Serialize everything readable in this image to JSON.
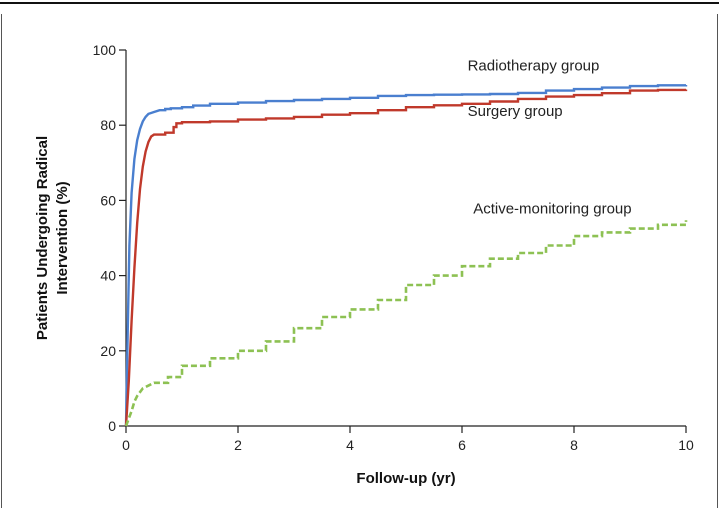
{
  "chart_data": {
    "type": "line",
    "title": "",
    "xlabel": "Follow-up (yr)",
    "ylabel": "Patients Undergoing Radical Intervention (%)",
    "ylabel_lines": [
      "Patients Undergoing Radical",
      "Intervention (%)"
    ],
    "xlim": [
      0,
      10
    ],
    "ylim": [
      0,
      100
    ],
    "x_ticks": [
      0,
      2,
      4,
      6,
      8,
      10
    ],
    "y_ticks": [
      0,
      20,
      40,
      60,
      80,
      100
    ],
    "x_tick_labels": [
      "0",
      "2",
      "4",
      "6",
      "8",
      "10"
    ],
    "y_tick_labels": [
      "0",
      "20",
      "40",
      "60",
      "80",
      "100"
    ],
    "grid": false,
    "step": true,
    "series": [
      {
        "name": "Radiotherapy group",
        "color": "#4a7fcf",
        "dash": "solid",
        "points": [
          [
            0,
            0
          ],
          [
            0.03,
            25
          ],
          [
            0.06,
            48
          ],
          [
            0.1,
            62
          ],
          [
            0.15,
            71
          ],
          [
            0.2,
            76
          ],
          [
            0.25,
            79
          ],
          [
            0.3,
            81
          ],
          [
            0.35,
            82.2
          ],
          [
            0.4,
            83
          ],
          [
            0.5,
            83.5
          ],
          [
            0.6,
            84
          ],
          [
            0.7,
            84.3
          ],
          [
            0.8,
            84.5
          ],
          [
            1.0,
            84.8
          ],
          [
            1.2,
            85.2
          ],
          [
            1.5,
            85.7
          ],
          [
            2.0,
            86
          ],
          [
            2.5,
            86.4
          ],
          [
            3.0,
            86.7
          ],
          [
            3.5,
            87
          ],
          [
            4.0,
            87.3
          ],
          [
            4.5,
            87.8
          ],
          [
            5.0,
            88
          ],
          [
            5.5,
            88.1
          ],
          [
            6.0,
            88.2
          ],
          [
            6.5,
            88.3
          ],
          [
            7.0,
            88.6
          ],
          [
            7.5,
            89.2
          ],
          [
            8.0,
            89.6
          ],
          [
            8.5,
            90
          ],
          [
            9.0,
            90.4
          ],
          [
            9.5,
            90.6
          ],
          [
            10.0,
            90.7
          ]
        ]
      },
      {
        "name": "Surgery group",
        "color": "#c0392b",
        "dash": "solid",
        "points": [
          [
            0,
            0
          ],
          [
            0.05,
            12
          ],
          [
            0.1,
            28
          ],
          [
            0.15,
            42
          ],
          [
            0.2,
            54
          ],
          [
            0.25,
            63
          ],
          [
            0.3,
            69
          ],
          [
            0.35,
            73
          ],
          [
            0.4,
            75.5
          ],
          [
            0.45,
            77
          ],
          [
            0.5,
            77.5
          ],
          [
            0.7,
            78
          ],
          [
            0.85,
            79.5
          ],
          [
            0.9,
            80.5
          ],
          [
            1.0,
            80.8
          ],
          [
            1.5,
            81
          ],
          [
            2.0,
            81.5
          ],
          [
            2.5,
            81.8
          ],
          [
            3.0,
            82.2
          ],
          [
            3.5,
            82.8
          ],
          [
            4.0,
            83.2
          ],
          [
            4.5,
            84
          ],
          [
            5.0,
            84.8
          ],
          [
            5.5,
            85.3
          ],
          [
            6.0,
            85.7
          ],
          [
            6.5,
            86.3
          ],
          [
            7.0,
            87
          ],
          [
            7.5,
            87.6
          ],
          [
            8.0,
            88
          ],
          [
            8.5,
            88.5
          ],
          [
            9.0,
            89.2
          ],
          [
            9.5,
            89.4
          ],
          [
            10.0,
            89.5
          ]
        ]
      },
      {
        "name": "Active-monitoring group",
        "color": "#8dc153",
        "dash": "dashed",
        "points": [
          [
            0,
            0
          ],
          [
            0.05,
            2
          ],
          [
            0.1,
            4
          ],
          [
            0.15,
            6.5
          ],
          [
            0.2,
            8
          ],
          [
            0.3,
            10
          ],
          [
            0.5,
            11.5
          ],
          [
            0.75,
            13
          ],
          [
            1.0,
            16
          ],
          [
            1.5,
            18
          ],
          [
            2.0,
            20
          ],
          [
            2.5,
            22.5
          ],
          [
            3.0,
            26
          ],
          [
            3.5,
            29
          ],
          [
            4.0,
            31
          ],
          [
            4.5,
            33.5
          ],
          [
            5.0,
            37.5
          ],
          [
            5.5,
            40
          ],
          [
            6.0,
            42.5
          ],
          [
            6.5,
            44.5
          ],
          [
            7.0,
            46
          ],
          [
            7.5,
            48
          ],
          [
            8.0,
            50.5
          ],
          [
            8.5,
            51.5
          ],
          [
            9.0,
            52.5
          ],
          [
            9.5,
            53.5
          ],
          [
            10.0,
            54.7
          ]
        ]
      }
    ],
    "annotations": [
      {
        "text": "Radiotherapy group",
        "x": 6.1,
        "y": 94.5
      },
      {
        "text": "Surgery group",
        "x": 6.1,
        "y": 82.5
      },
      {
        "text": "Active-monitoring group",
        "x": 6.2,
        "y": 56.5
      }
    ]
  }
}
